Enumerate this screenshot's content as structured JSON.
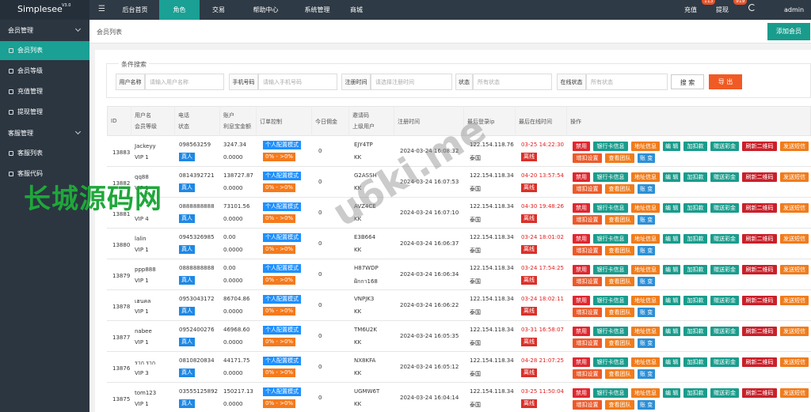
{
  "header": {
    "logo": "Simplesee",
    "version": "V3.0",
    "menu_icon": "☰",
    "nav": [
      "后台首页",
      "角色",
      "交易",
      "帮助中心",
      "系统管理",
      "商城"
    ],
    "recharge": "充值",
    "recharge_badge": 113,
    "withdraw": "提现",
    "withdraw_badge": 919,
    "user": "admin"
  },
  "sidebar": [
    {
      "label": "会员管理",
      "items": [
        "会员列表",
        "会员等级",
        "充值管理",
        "提现管理"
      ]
    },
    {
      "label": "客服管理",
      "items": [
        "客服列表",
        "客服代码"
      ]
    }
  ],
  "breadcrumb": "会员列表",
  "add_button": "添加会员",
  "search": {
    "title": "条件搜索",
    "fields": [
      {
        "label": "用户名称",
        "placeholder": "请输入用户名称"
      },
      {
        "label": "手机号码",
        "placeholder": "请输入手机号码"
      },
      {
        "label": "注册时间",
        "placeholder": "请选择注册时间"
      },
      {
        "label": "状态",
        "placeholder": "所有状态"
      },
      {
        "label": "在线状态",
        "placeholder": "所有状态"
      }
    ],
    "search_button": "搜 索",
    "export_button": "导 出"
  },
  "table": {
    "columns": [
      [
        "ID"
      ],
      [
        "用户名",
        "会员等级"
      ],
      [
        "电话",
        "状态"
      ],
      [
        "账户",
        "利息宝金额"
      ],
      [
        "订单控制"
      ],
      [
        "今日佣金"
      ],
      [
        "邀请码",
        "上级用户"
      ],
      [
        "注册时间"
      ],
      [
        "最后登录ip"
      ],
      [
        "最后在线时间"
      ],
      [
        "操作"
      ]
    ],
    "actions": [
      [
        "禁用",
        "银行卡信息",
        "地址信息",
        "编 辑",
        "加扣款",
        "赠送彩金",
        "刷新二维码",
        "发送短信"
      ],
      [
        "增扣设置",
        "查看团队",
        "账 变"
      ]
    ],
    "rows": [
      {
        "id": 13883,
        "username": "Jackeyy",
        "level": "VIP 1",
        "phone": "098563259",
        "status": "真人",
        "balance": "3247.34",
        "interest": "0.0000",
        "mode": "个人配置模式",
        "range": "0% - >0%",
        "commission": 0,
        "invite": "EJY4TP",
        "parent": "KK",
        "registered": "2024-03-24 16:08:32",
        "ip": "122.154.118.76",
        "country": "泰国",
        "last_online": "03-25 14:22:30",
        "online": "离线"
      },
      {
        "id": 13882,
        "username": "qq88",
        "level": "VIP 1",
        "phone": "0814392721",
        "status": "真人",
        "balance": "138727.87",
        "interest": "0.0000",
        "mode": "个人配置模式",
        "range": "0% - >0%",
        "commission": 0,
        "invite": "G2ASSH",
        "parent": "KK",
        "registered": "2024-03-24 16:07:53",
        "ip": "122.154.118.34",
        "country": "泰国",
        "last_online": "04-20 13:57:54",
        "online": "离线"
      },
      {
        "id": 13881,
        "level": "VIP 4",
        "phone": "0888888888",
        "status": "真人",
        "balance": "73101.56",
        "interest": "0.0000",
        "mode": "个人配置模式",
        "range": "0% - >0%",
        "commission": 0,
        "invite": "AVZ4CE",
        "parent": "KK",
        "registered": "2024-03-24 16:07:10",
        "ip": "122.154.118.34",
        "country": "泰国",
        "last_online": "04-30 19:48:26",
        "online": "离线"
      },
      {
        "id": 13880,
        "username": "lalin",
        "level": "VIP 1",
        "phone": "0945326985",
        "status": "真人",
        "balance": "0.00",
        "interest": "0.0000",
        "mode": "个人配置模式",
        "range": "0% - >0%",
        "commission": 0,
        "invite": "E3B664",
        "parent": "KK",
        "registered": "2024-03-24 16:06:37",
        "ip": "122.154.118.34",
        "country": "泰国",
        "last_online": "03-24 18:01:02",
        "online": "离线"
      },
      {
        "id": 13879,
        "username": "ppp888",
        "level": "VIP 1",
        "phone": "0888888888",
        "status": "真人",
        "balance": "0.00",
        "interest": "0.0000",
        "mode": "个人配置模式",
        "range": "0% - >0%",
        "commission": 0,
        "invite": "H87WDP",
        "parent": "ฝ้กกา168",
        "registered": "2024-03-24 16:06:34",
        "ip": "122.154.118.34",
        "country": "泰国",
        "last_online": "03-24 17:54:25",
        "online": "离线"
      },
      {
        "id": 13878,
        "username": "เฮนคล",
        "level": "VIP 1",
        "phone": "0953043172",
        "status": "真人",
        "balance": "86704.86",
        "interest": "0.0000",
        "mode": "个人配置模式",
        "range": "0% - >0%",
        "commission": 0,
        "invite": "VNPJK3",
        "parent": "KK",
        "registered": "2024-03-24 16:06:22",
        "ip": "122.154.118.34",
        "country": "泰国",
        "last_online": "03-24 18:02:11",
        "online": "离线"
      },
      {
        "id": 13877,
        "username": "nabee",
        "level": "VIP 1",
        "phone": "0952400276",
        "status": "真人",
        "balance": "46968.60",
        "interest": "0.0000",
        "mode": "个人配置模式",
        "range": "0% - >0%",
        "commission": 0,
        "invite": "TM6U2K",
        "parent": "KK",
        "registered": "2024-03-24 16:05:35",
        "ip": "122.154.118.34",
        "country": "泰国",
        "last_online": "03-31 16:58:07",
        "online": "离线"
      },
      {
        "id": 13876,
        "username": "ราก ราก",
        "level": "VIP 3",
        "phone": "0810820834",
        "status": "真人",
        "balance": "44171.75",
        "interest": "0.0000",
        "mode": "个人配置模式",
        "range": "0% - >0%",
        "commission": 0,
        "invite": "NX8KFA",
        "parent": "KK",
        "registered": "2024-03-24 16:05:12",
        "ip": "122.154.118.34",
        "country": "泰国",
        "last_online": "04-28 21:07:25",
        "online": "离线"
      },
      {
        "id": 13875,
        "username": "tom123",
        "level": "VIP 1",
        "phone": "03555125892",
        "status": "真人",
        "balance": "150217.13",
        "interest": "0.0000",
        "mode": "个人配置模式",
        "range": "0% - >0%",
        "commission": 0,
        "invite": "UGMW6T",
        "parent": "KK",
        "registered": "2024-03-24 16:04:14",
        "ip": "122.154.118.34",
        "country": "泰国",
        "last_online": "03-25 11:50:04",
        "online": "离线"
      }
    ]
  },
  "watermarks": [
    "长城源码网",
    "u6ki.me"
  ]
}
